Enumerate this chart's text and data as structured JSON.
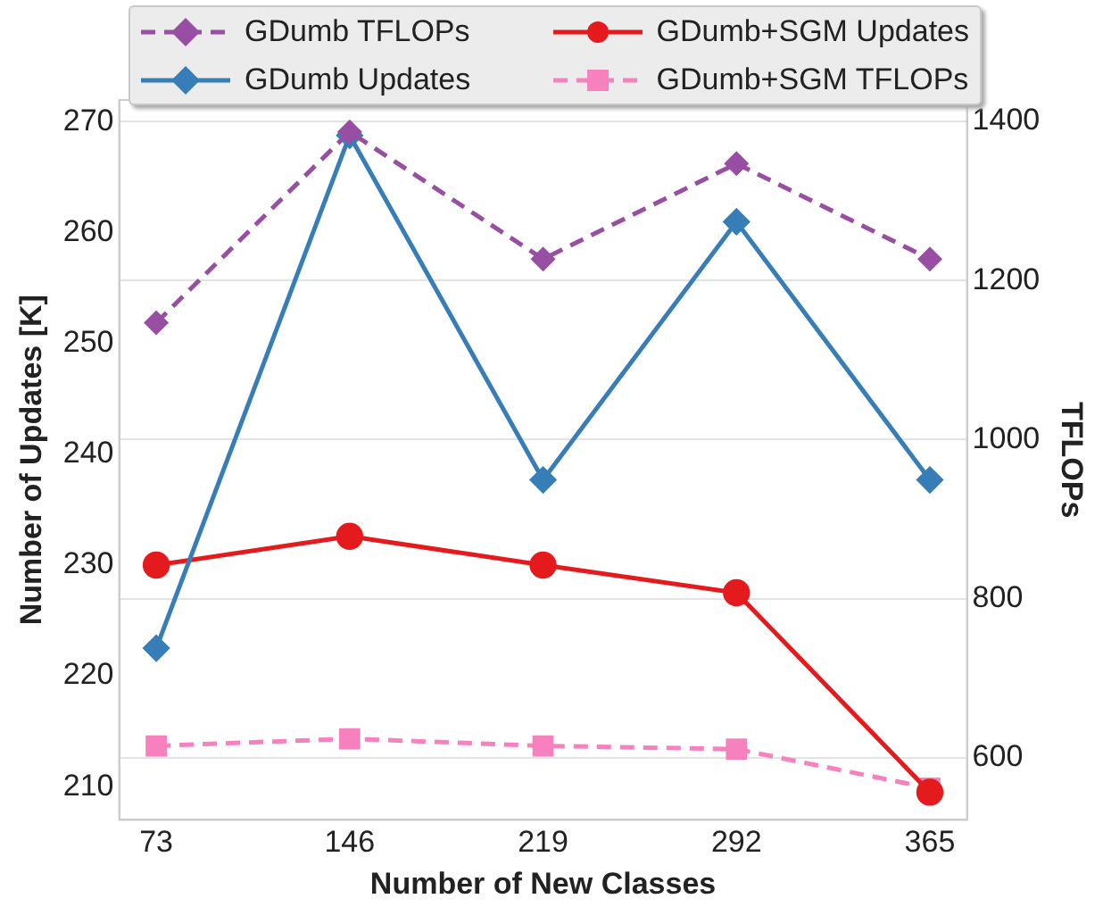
{
  "chart_data": {
    "type": "line",
    "xlabel": "Number of New Classes",
    "ylabel": "Number of Updates [K]",
    "y2label": "TFLOPs",
    "x": [
      73,
      146,
      219,
      292,
      365
    ],
    "xlim": [
      59,
      379
    ],
    "xticks": [
      73,
      146,
      219,
      292,
      365
    ],
    "ylim": [
      207,
      272
    ],
    "yticks": [
      210,
      220,
      230,
      240,
      250,
      260,
      270
    ],
    "y2lim": [
      522,
      1427
    ],
    "y2ticks": [
      600,
      800,
      1000,
      1200,
      1400
    ],
    "grid": "y",
    "legend": "top",
    "series": [
      {
        "name": "GDumb TFLOPs",
        "color": "#984ea3",
        "axis": "y2",
        "marker": "diamond",
        "line_style": "dashed",
        "values": [
          1147,
          1387,
          1227,
          1347,
          1227
        ]
      },
      {
        "name": "GDumb Updates",
        "color": "#377eb8",
        "marker": "diamond",
        "line_style": "solid",
        "values": [
          222.5,
          268.8,
          237.7,
          261,
          237.7
        ]
      },
      {
        "name": "GDumb+SGM Updates",
        "color": "#e41a1c",
        "marker": "circle",
        "line_style": "solid",
        "values": [
          230,
          232.6,
          230,
          227.5,
          209.5
        ]
      },
      {
        "name": "GDumb+SGM TFLOPs",
        "color": "#f781bf",
        "axis": "y2",
        "marker": "square",
        "line_style": "dashed",
        "values": [
          615,
          624,
          615,
          611,
          562
        ]
      }
    ]
  }
}
